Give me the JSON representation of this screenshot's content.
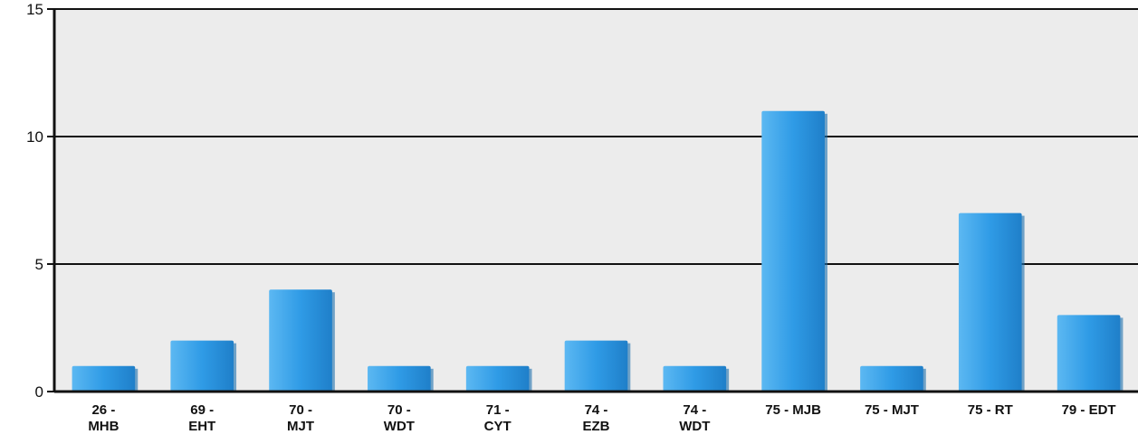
{
  "chart_data": {
    "type": "bar",
    "title": "",
    "xlabel": "",
    "ylabel": "",
    "ylim": [
      0,
      15
    ],
    "yticks": [
      0,
      5,
      10,
      15
    ],
    "grid": true,
    "legend": "none",
    "colors": {
      "bar": "#2f9be6",
      "bar_highlight": "#5cb8f2",
      "bar_shadow": "#1c6fae",
      "plot_background": "#ececec",
      "grid": "#111111",
      "axis": "#111111"
    },
    "categories": [
      [
        "26 -",
        "MHB"
      ],
      [
        "69 -",
        "EHT"
      ],
      [
        "70 -",
        "MJT"
      ],
      [
        "70 -",
        "WDT"
      ],
      [
        "71 -",
        "CYT"
      ],
      [
        "74 -",
        "EZB"
      ],
      [
        "74 -",
        "WDT"
      ],
      [
        "75 - MJB"
      ],
      [
        "75 - MJT"
      ],
      [
        "75 - RT"
      ],
      [
        "79 - EDT"
      ]
    ],
    "values": [
      1,
      2,
      4,
      1,
      1,
      2,
      1,
      11,
      1,
      7,
      3
    ]
  }
}
